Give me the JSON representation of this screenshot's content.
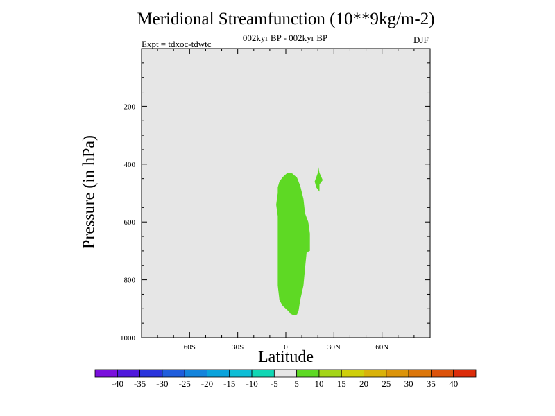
{
  "chart_data": {
    "type": "contour",
    "title": "Meridional Streamfunction (10**9kg/m-2)",
    "subtitle": "002kyr BP - 002kyr BP",
    "left_label": "Expt = tdxoc-tdwtc",
    "right_label": "DJF",
    "xlabel": "Latitude",
    "ylabel": "Pressure (in hPa)",
    "xlim": [
      -90,
      90
    ],
    "ylim": [
      0,
      1000
    ],
    "y_inverted": true,
    "x_ticks": [
      {
        "value": -60,
        "label": "60S"
      },
      {
        "value": -30,
        "label": "30S"
      },
      {
        "value": 0,
        "label": "0"
      },
      {
        "value": 30,
        "label": "30N"
      },
      {
        "value": 60,
        "label": "60N"
      }
    ],
    "y_ticks": [
      {
        "value": 200,
        "label": "200"
      },
      {
        "value": 400,
        "label": "400"
      },
      {
        "value": 600,
        "label": "600"
      },
      {
        "value": 800,
        "label": "800"
      },
      {
        "value": 1000,
        "label": "1000"
      }
    ],
    "background_color": "#e6e6e6",
    "shaded_regions": [
      {
        "level_range": [
          5,
          10
        ],
        "color": "#5ed924",
        "points": [
          [
            -4,
            460
          ],
          [
            -2,
            445
          ],
          [
            1,
            430
          ],
          [
            4,
            432
          ],
          [
            7,
            447
          ],
          [
            9,
            475
          ],
          [
            11,
            520
          ],
          [
            12,
            570
          ],
          [
            14,
            600
          ],
          [
            15,
            640
          ],
          [
            15,
            700
          ],
          [
            13,
            705
          ],
          [
            12,
            760
          ],
          [
            11,
            820
          ],
          [
            9,
            870
          ],
          [
            8,
            905
          ],
          [
            7,
            920
          ],
          [
            5,
            923
          ],
          [
            3,
            918
          ],
          [
            2,
            910
          ],
          [
            0,
            900
          ],
          [
            -2,
            890
          ],
          [
            -4,
            870
          ],
          [
            -5,
            820
          ],
          [
            -5,
            740
          ],
          [
            -5,
            650
          ],
          [
            -5,
            580
          ],
          [
            -6,
            540
          ],
          [
            -5,
            500
          ],
          [
            -5,
            480
          ]
        ]
      },
      {
        "level_range": [
          5,
          10
        ],
        "color": "#5ed924",
        "points": [
          [
            20,
            400
          ],
          [
            21,
            430
          ],
          [
            23,
            455
          ],
          [
            21,
            470
          ],
          [
            21,
            495
          ],
          [
            19,
            480
          ],
          [
            18,
            460
          ],
          [
            20,
            430
          ]
        ]
      }
    ],
    "colorbar": {
      "labels": [
        "-40",
        "-35",
        "-30",
        "-25",
        "-20",
        "-15",
        "-10",
        "-5",
        "5",
        "10",
        "15",
        "20",
        "25",
        "30",
        "35",
        "40"
      ],
      "colors": [
        "#7a0fdc",
        "#4f18dc",
        "#2a34dc",
        "#1f5ddc",
        "#1484dc",
        "#0aa3dc",
        "#0ebed6",
        "#11d6b4",
        "#e6e6e6",
        "#5ed924",
        "#a4d518",
        "#cfcf0a",
        "#d9b20a",
        "#dc940a",
        "#dc760a",
        "#dc520a",
        "#dc2c0a"
      ]
    }
  }
}
